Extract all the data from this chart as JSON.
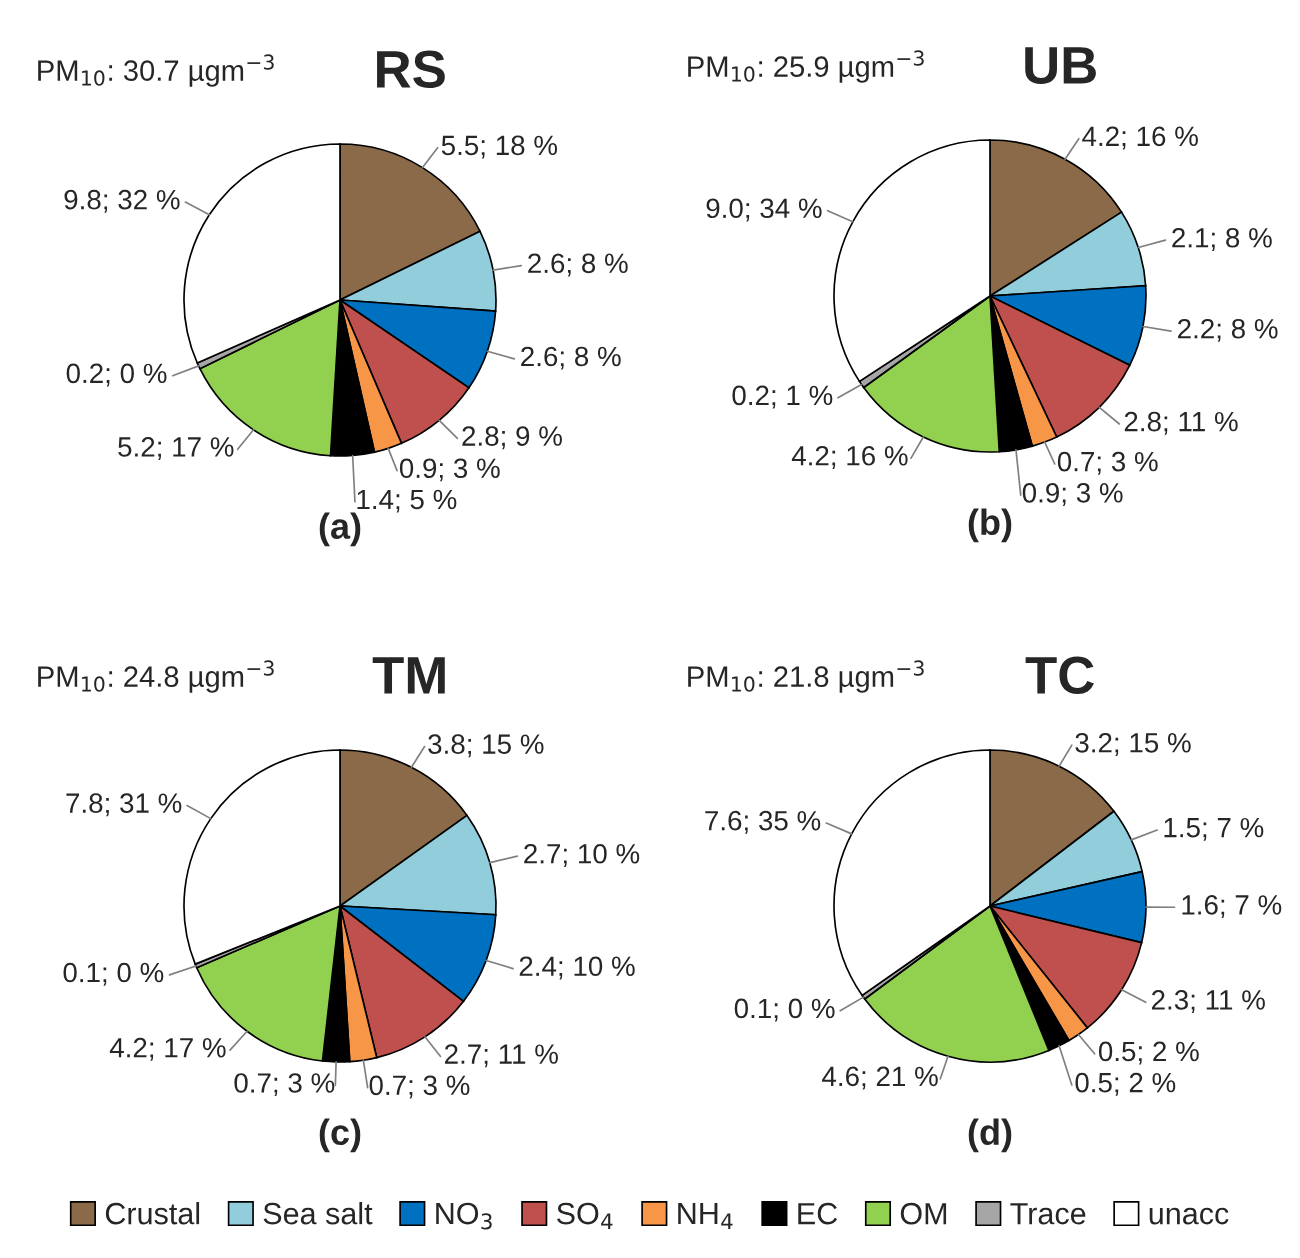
{
  "chart_data": [
    {
      "type": "pie",
      "title": "RS",
      "subtitle": "PM$_{10}$: 30.7 µgm$^{−3}$",
      "annotations": [
        "(a)"
      ],
      "legend": "bottom",
      "categories": [
        "Crustal",
        "Sea salt",
        "NO$_{3}$",
        "SO$_{4}$",
        "NH$_{4}$",
        "EC",
        "OM",
        "Trace",
        "unacc"
      ],
      "values": [
        5.5,
        2.6,
        2.6,
        2.8,
        0.9,
        1.4,
        5.2,
        0.2,
        9.8
      ],
      "colors": [
        "#8b6a4a",
        "#92cddc",
        "#0070c0",
        "#c0504d",
        "#f79646",
        "#000000",
        "#92d050",
        "#a6a6a6",
        "#ffffff"
      ],
      "value_labels": [
        "5.5; 18 %",
        "2.6; 8 %",
        "2.6; 8 %",
        "2.8; 9 %",
        "0.9; 3 %",
        "1.4; 5 %",
        "5.2; 17 %",
        "0.2; 0 %",
        "9.8; 32 %"
      ]
    },
    {
      "type": "pie",
      "title": "UB",
      "subtitle": "PM$_{10}$: 25.9 µgm$^{−3}$",
      "annotations": [
        "(b)"
      ],
      "values": [
        4.2,
        2.1,
        2.2,
        2.8,
        0.7,
        0.9,
        4.2,
        0.2,
        9.0
      ],
      "colors": [
        "#8b6a4a",
        "#92cddc",
        "#0070c0",
        "#c0504d",
        "#f79646",
        "#000000",
        "#92d050",
        "#a6a6a6",
        "#ffffff"
      ],
      "value_labels": [
        "4.2; 16 %",
        "2.1; 8 %",
        "2.2; 8 %",
        "2.8; 11 %",
        "0.7; 3 %",
        "0.9; 3 %",
        "4.2; 16 %",
        "0.2; 1 %",
        "9.0; 34 %"
      ]
    },
    {
      "type": "pie",
      "title": "TM",
      "subtitle": "PM$_{10}$: 24.8 µgm$^{−3}$",
      "annotations": [
        "(c)"
      ],
      "values": [
        3.8,
        2.7,
        2.4,
        2.7,
        0.7,
        0.7,
        4.2,
        0.1,
        7.8
      ],
      "colors": [
        "#8b6a4a",
        "#92cddc",
        "#0070c0",
        "#c0504d",
        "#f79646",
        "#000000",
        "#92d050",
        "#a6a6a6",
        "#ffffff"
      ],
      "value_labels": [
        "3.8; 15 %",
        "2.7; 10 %",
        "2.4; 10 %",
        "2.7; 11 %",
        "0.7; 3 %",
        "0.7; 3 %",
        "4.2; 17 %",
        "0.1; 0 %",
        "7.8; 31 %"
      ]
    },
    {
      "type": "pie",
      "title": "TC",
      "subtitle": "PM$_{10}$: 21.8 µgm$^{−3}$",
      "annotations": [
        "(d)"
      ],
      "values": [
        3.2,
        1.5,
        1.6,
        2.3,
        0.5,
        0.5,
        4.6,
        0.1,
        7.6
      ],
      "colors": [
        "#8b6a4a",
        "#92cddc",
        "#0070c0",
        "#c0504d",
        "#f79646",
        "#000000",
        "#92d050",
        "#a6a6a6",
        "#ffffff"
      ],
      "value_labels": [
        "3.2; 15 %",
        "1.5; 7 %",
        "1.6; 7 %",
        "2.3; 11 %",
        "0.5; 2 %",
        "0.5; 2 %",
        "4.6; 21 %",
        "0.1; 0 %",
        "7.6; 35 %"
      ]
    }
  ]
}
